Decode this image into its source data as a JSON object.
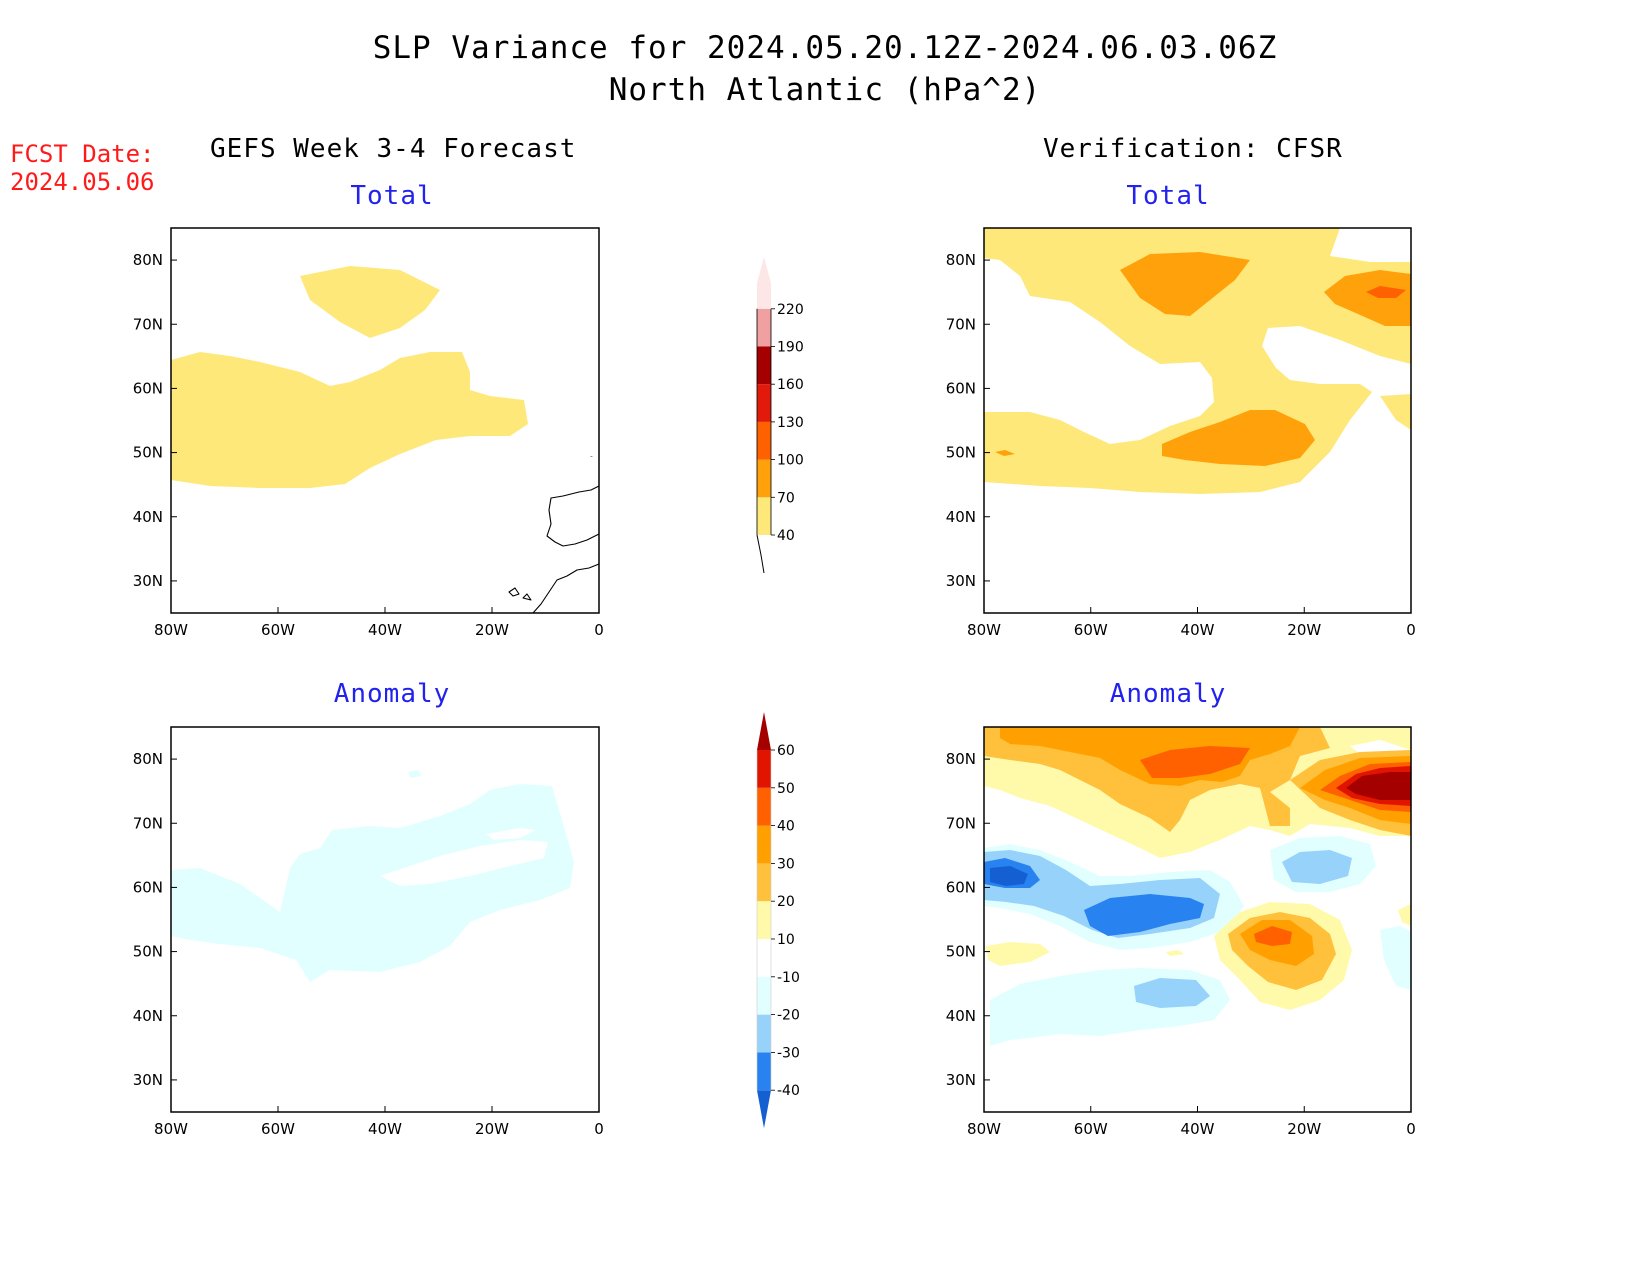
{
  "title_line1": "SLP Variance for 2024.05.20.12Z-2024.06.03.06Z",
  "title_line2": "North Atlantic (hPa^2)",
  "fcst_label": "FCST Date:",
  "fcst_date": "2024.05.06",
  "left_header": "GEFS Week 3-4 Forecast",
  "right_header": "Verification: CFSR",
  "panels": [
    {
      "id": "forecast-total",
      "subtitle": "Total"
    },
    {
      "id": "verification-total",
      "subtitle": "Total"
    },
    {
      "id": "forecast-anomaly",
      "subtitle": "Anomaly"
    },
    {
      "id": "verification-anomaly",
      "subtitle": "Anomaly"
    }
  ],
  "map": {
    "lon_range": [
      -80,
      0
    ],
    "lat_range": [
      25,
      85
    ],
    "lon_ticks": [
      "80W",
      "60W",
      "40W",
      "20W",
      "0"
    ],
    "lat_ticks": [
      "30N",
      "40N",
      "50N",
      "60N",
      "70N",
      "80N"
    ],
    "lat_tick_values": [
      30,
      40,
      50,
      60,
      70,
      80
    ],
    "lon_tick_values": [
      -80,
      -60,
      -40,
      -20,
      0
    ]
  },
  "colorbar_total": {
    "labels": [
      "40",
      "70",
      "100",
      "130",
      "160",
      "190",
      "220"
    ],
    "colors": [
      "#fee87a",
      "#ffa10a",
      "#ff6100",
      "#e11a0c",
      "#a50000",
      "#f0a0a0",
      "#fde6e6"
    ]
  },
  "colorbar_anomaly": {
    "labels": [
      "-40",
      "-30",
      "-20",
      "-10",
      "10",
      "20",
      "30",
      "40",
      "50",
      "60"
    ],
    "colors": [
      "#1460d2",
      "#2882f0",
      "#96d2fa",
      "#e1ffff",
      "#ffffff",
      "#fffaaa",
      "#ffc03c",
      "#ffa000",
      "#ff6000",
      "#e11400",
      "#a50000"
    ]
  },
  "shading_colors": {
    "light_yellow": "#fee87a",
    "orange": "#ffa10a",
    "dark_orange": "#ff6100",
    "dark_red": "#a50000",
    "pale_cyan": "#e1ffff",
    "light_blue": "#96d2fa",
    "blue": "#2882f0",
    "pale_yellow": "#fffaaa",
    "light_orange": "#ffc03c"
  }
}
